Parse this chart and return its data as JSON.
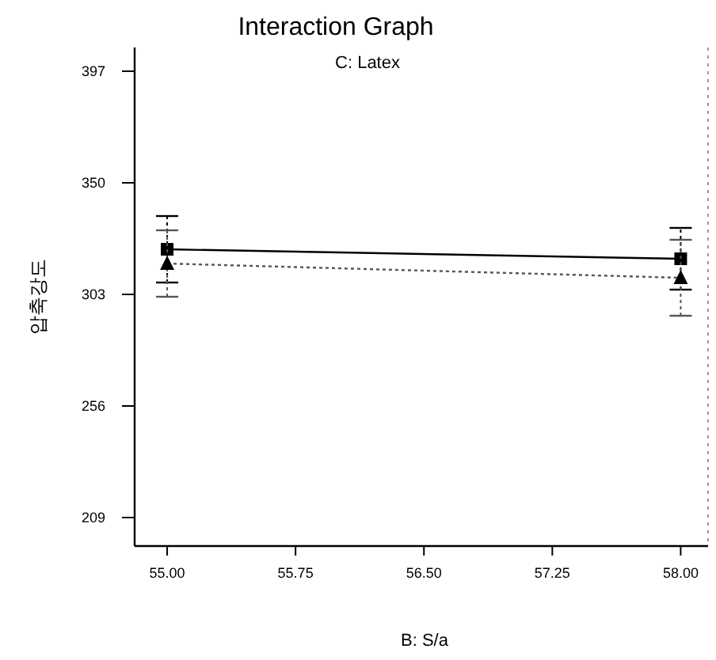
{
  "chart_data": {
    "type": "line",
    "title": "Interaction Graph",
    "subtitle": "C: Latex",
    "xlabel": "B: S/a",
    "ylabel": "압축강도",
    "x": [
      55,
      58
    ],
    "series": [
      {
        "color": "#000000",
        "marker": "square",
        "line_style": "solid",
        "values": [
          322,
          318
        ],
        "errors": [
          14,
          13
        ]
      },
      {
        "color": "#555555",
        "marker": "triangle",
        "line_style": "dotted",
        "values": [
          316,
          310
        ],
        "errors": [
          14,
          16
        ]
      }
    ],
    "xlim": [
      54.81,
      58.16
    ],
    "ylim": [
      197,
      407
    ],
    "xticks": [
      {
        "value": 55,
        "label": "55.00"
      },
      {
        "value": 55.75,
        "label": "55.75"
      },
      {
        "value": 56.5,
        "label": "56.50"
      },
      {
        "value": 57.25,
        "label": "57.25"
      },
      {
        "value": 58,
        "label": "58.00"
      }
    ],
    "yticks": [
      209,
      256,
      303,
      350,
      397
    ],
    "grid": false
  }
}
